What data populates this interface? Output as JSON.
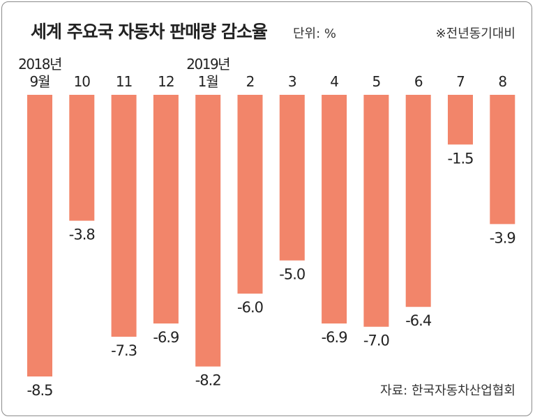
{
  "header": {
    "title": "세계 주요국 자동차 판매량 감소율",
    "unit": "단위: %",
    "note": "※전년동기대비"
  },
  "footer": {
    "source": "자료: 한국자동차산업협회"
  },
  "colors": {
    "bar": "#f2856a",
    "text": "#222222"
  },
  "chart_data": {
    "type": "bar",
    "title": "세계 주요국 자동차 판매량 감소율",
    "xlabel": "",
    "ylabel": "",
    "categories": [
      {
        "year": "2018년",
        "month": "9월"
      },
      {
        "year": "",
        "month": "10"
      },
      {
        "year": "",
        "month": "11"
      },
      {
        "year": "",
        "month": "12"
      },
      {
        "year": "2019년",
        "month": "1월"
      },
      {
        "year": "",
        "month": "2"
      },
      {
        "year": "",
        "month": "3"
      },
      {
        "year": "",
        "month": "4"
      },
      {
        "year": "",
        "month": "5"
      },
      {
        "year": "",
        "month": "6"
      },
      {
        "year": "",
        "month": "7"
      },
      {
        "year": "",
        "month": "8"
      }
    ],
    "values": [
      -8.5,
      -3.8,
      -7.3,
      -6.9,
      -8.2,
      -6.0,
      -5.0,
      -6.9,
      -7.0,
      -6.4,
      -1.5,
      -3.9
    ],
    "value_labels": [
      "-8.5",
      "-3.8",
      "-7.3",
      "-6.9",
      "-8.2",
      "-6.0",
      "-5.0",
      "-6.9",
      "-7.0",
      "-6.4",
      "-1.5",
      "-3.9"
    ],
    "ylim": [
      -8.5,
      0
    ],
    "grid": false,
    "legend": "none"
  }
}
